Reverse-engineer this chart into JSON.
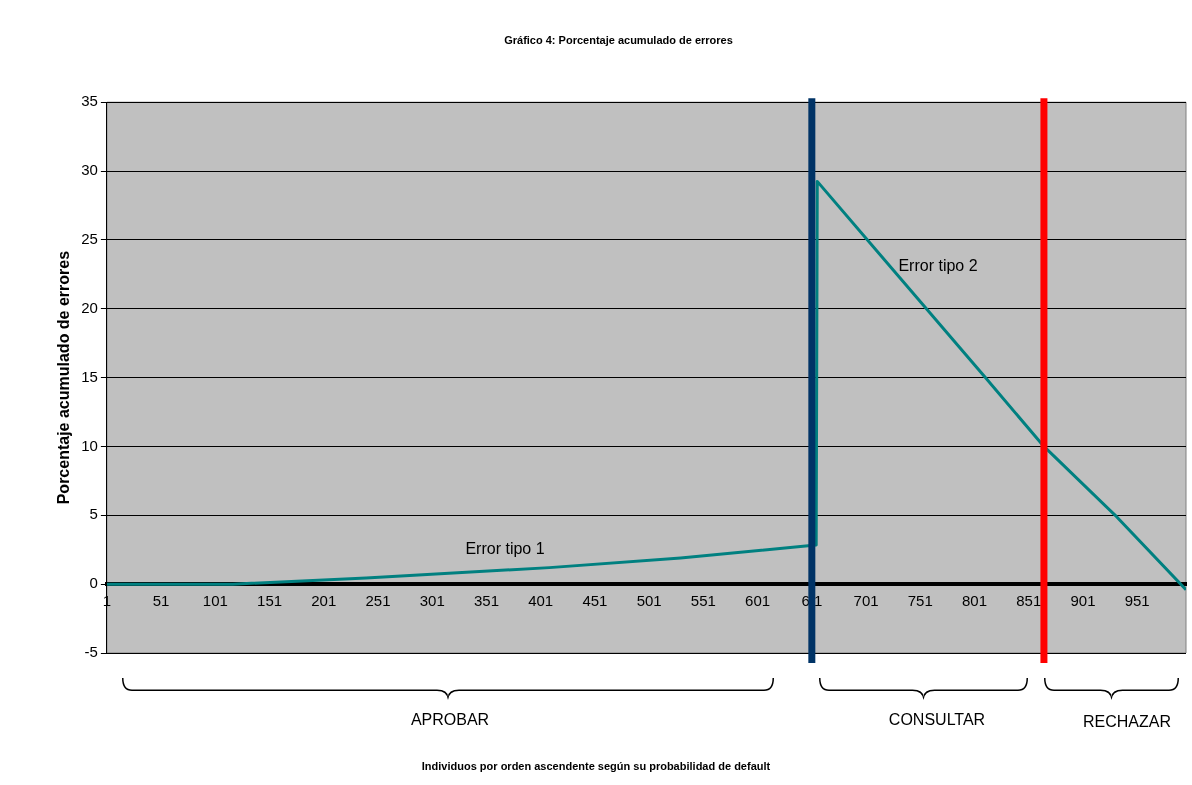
{
  "chart_data": {
    "type": "line",
    "title": "Gráfico 4: Porcentaje acumulado de errores",
    "ylabel": "Porcentaje acumulado de errores",
    "series": [
      {
        "color": "#008080",
        "x": [
          1,
          117,
          240,
          409,
          530,
          650,
          655,
          656,
          811,
          865,
          932,
          996
        ],
        "values": [
          0,
          0,
          0.45,
          1.2,
          1.9,
          2.8,
          2.85,
          29.25,
          15,
          10,
          4.9,
          -0.4
        ]
      }
    ],
    "xlim": [
      1,
      996
    ],
    "xticks": [
      1,
      51,
      101,
      151,
      201,
      251,
      301,
      351,
      401,
      451,
      501,
      551,
      601,
      {
        "value": 651,
        "label": "6 1"
      },
      701,
      751,
      801,
      851,
      901,
      951
    ],
    "ylim": [
      -5,
      35
    ],
    "yticks": [
      -5,
      0,
      5,
      10,
      15,
      20,
      25,
      30,
      35
    ],
    "grid": "y",
    "marker": "none",
    "line_style": "solid",
    "ref_lines": [
      {
        "axis": "x",
        "value": 651,
        "color": "#003366"
      },
      {
        "axis": "x",
        "value": 865,
        "color": "#ff0000"
      }
    ],
    "annotations": [
      "Error tipo 1",
      "Error tipo 2",
      "APROBAR",
      "CONSULTAR",
      "RECHAZAR",
      "Individuos por orden ascendente según su probabilidad de default"
    ]
  }
}
